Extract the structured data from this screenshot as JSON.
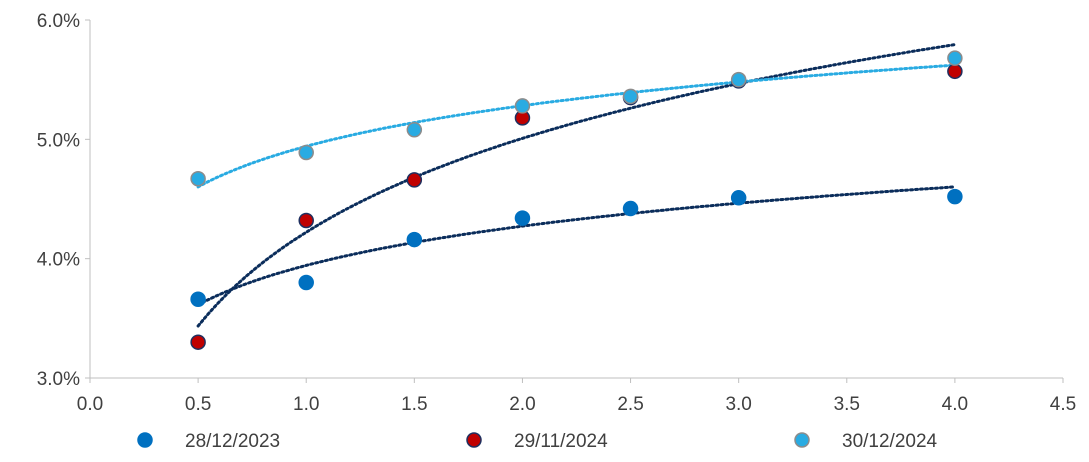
{
  "chart_data": {
    "type": "scatter",
    "title": "",
    "xlabel": "",
    "ylabel": "",
    "xlim": [
      0,
      4.5
    ],
    "ylim": [
      3.0,
      6.0
    ],
    "x_ticks": [
      "0.0",
      "0.5",
      "1.0",
      "1.5",
      "2.0",
      "2.5",
      "3.0",
      "3.5",
      "4.0",
      "4.5"
    ],
    "y_ticks": [
      "3.0%",
      "4.0%",
      "5.0%",
      "6.0%"
    ],
    "grid": false,
    "legend_position": "bottom",
    "trendline": "logarithmic, dotted",
    "series": [
      {
        "name": "28/12/2023",
        "color": "#0070C0",
        "edge_color": "#0070C0",
        "trend_color": "#0B2D5B",
        "points": [
          [
            0.5,
            3.66
          ],
          [
            1.0,
            3.8
          ],
          [
            1.5,
            4.16
          ],
          [
            2.0,
            4.34
          ],
          [
            2.5,
            4.42
          ],
          [
            3.0,
            4.51
          ],
          [
            4.0,
            4.52
          ]
        ]
      },
      {
        "name": "29/11/2024",
        "color": "#C00000",
        "edge_color": "#1F2F5F",
        "trend_color": "#0B2D5B",
        "points": [
          [
            0.5,
            3.3
          ],
          [
            1.0,
            4.32
          ],
          [
            1.5,
            4.66
          ],
          [
            2.0,
            5.18
          ],
          [
            2.5,
            5.35
          ],
          [
            3.0,
            5.49
          ],
          [
            4.0,
            5.57
          ]
        ]
      },
      {
        "name": "30/12/2024",
        "color": "#29ABE2",
        "edge_color": "#8C8C8C",
        "trend_color": "#29ABE2",
        "points": [
          [
            0.5,
            4.67
          ],
          [
            1.0,
            4.89
          ],
          [
            1.5,
            5.08
          ],
          [
            2.0,
            5.28
          ],
          [
            2.5,
            5.36
          ],
          [
            3.0,
            5.5
          ],
          [
            4.0,
            5.68
          ]
        ]
      }
    ]
  }
}
